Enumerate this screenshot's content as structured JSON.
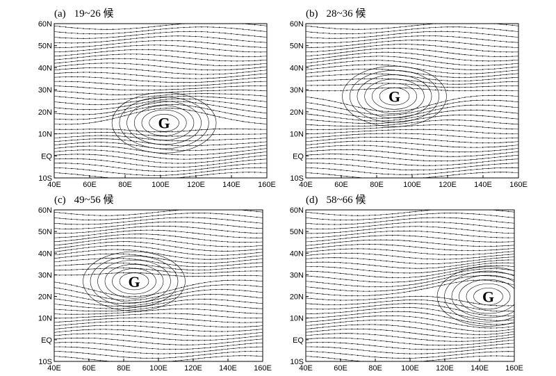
{
  "x_tick_labels": [
    "40E",
    "60E",
    "80E",
    "100E",
    "120E",
    "140E",
    "160E"
  ],
  "y_tick_labels": [
    "10S",
    "EQ",
    "10N",
    "20N",
    "30N",
    "40N",
    "50N",
    "60N"
  ],
  "panels": [
    {
      "letter": "(a)",
      "period": "19~26 候",
      "center_label": "G",
      "center_lon": 102,
      "center_lat": 15
    },
    {
      "letter": "(b)",
      "period": "28~36 候",
      "center_label": "G",
      "center_lon": 90,
      "center_lat": 27
    },
    {
      "letter": "(c)",
      "period": "49~56 候",
      "center_label": "G",
      "center_lon": 86,
      "center_lat": 27
    },
    {
      "letter": "(d)",
      "period": "58~66 候",
      "center_label": "G",
      "center_lon": 145,
      "center_lat": 20
    }
  ]
}
